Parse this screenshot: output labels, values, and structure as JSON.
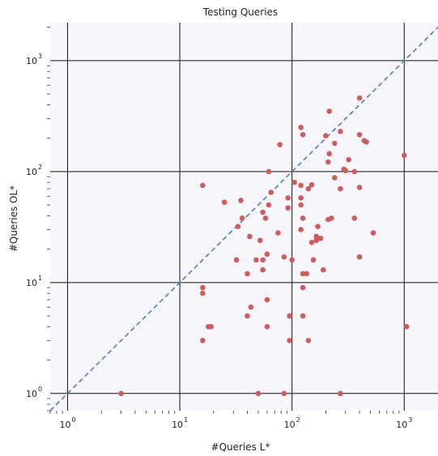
{
  "chart_data": {
    "type": "scatter",
    "title": "Testing Queries",
    "xlabel": "#Queries L*",
    "ylabel": "#Queries OL*",
    "xscale": "log",
    "yscale": "log",
    "xlim": [
      0.7,
      2000
    ],
    "ylim": [
      0.7,
      2200
    ],
    "xticks": [
      {
        "value": 1,
        "base": "10",
        "exp": "0"
      },
      {
        "value": 10,
        "base": "10",
        "exp": "1"
      },
      {
        "value": 100,
        "base": "10",
        "exp": "2"
      },
      {
        "value": 1000,
        "base": "10",
        "exp": "3"
      }
    ],
    "yticks": [
      {
        "value": 1,
        "base": "10",
        "exp": "0"
      },
      {
        "value": 10,
        "base": "10",
        "exp": "1"
      },
      {
        "value": 100,
        "base": "10",
        "exp": "2"
      },
      {
        "value": 1000,
        "base": "10",
        "exp": "3"
      }
    ],
    "grid": true,
    "reference_line": "y = x",
    "colors": {
      "background": "#f5f5fb",
      "points": "#cd5c5c",
      "grid": "#111111",
      "reference_line": "#4e7fb8"
    },
    "points": [
      [
        3,
        1
      ],
      [
        50,
        1
      ],
      [
        85,
        1
      ],
      [
        270,
        1
      ],
      [
        16,
        3
      ],
      [
        95,
        3
      ],
      [
        140,
        3
      ],
      [
        18,
        4
      ],
      [
        19,
        4
      ],
      [
        60,
        4
      ],
      [
        1050,
        4
      ],
      [
        40,
        5
      ],
      [
        95,
        5
      ],
      [
        125,
        5
      ],
      [
        43,
        6
      ],
      [
        60,
        7
      ],
      [
        16,
        8
      ],
      [
        16,
        9
      ],
      [
        125,
        9
      ],
      [
        40,
        12
      ],
      [
        55,
        13
      ],
      [
        125,
        12
      ],
      [
        135,
        12
      ],
      [
        190,
        13
      ],
      [
        32,
        16
      ],
      [
        48,
        16
      ],
      [
        55,
        16
      ],
      [
        85,
        17
      ],
      [
        100,
        16
      ],
      [
        155,
        16
      ],
      [
        400,
        17
      ],
      [
        60,
        18
      ],
      [
        52,
        24
      ],
      [
        75,
        28
      ],
      [
        120,
        30
      ],
      [
        150,
        23
      ],
      [
        165,
        24
      ],
      [
        165,
        26
      ],
      [
        180,
        25
      ],
      [
        530,
        28
      ],
      [
        33,
        32
      ],
      [
        42,
        26
      ],
      [
        58,
        38
      ],
      [
        125,
        38
      ],
      [
        170,
        32
      ],
      [
        36,
        38
      ],
      [
        210,
        37
      ],
      [
        225,
        38
      ],
      [
        360,
        38
      ],
      [
        25,
        53
      ],
      [
        35,
        55
      ],
      [
        55,
        43
      ],
      [
        62,
        50
      ],
      [
        92,
        47
      ],
      [
        120,
        50
      ],
      [
        65,
        65
      ],
      [
        92,
        58
      ],
      [
        120,
        58
      ],
      [
        140,
        70
      ],
      [
        150,
        76
      ],
      [
        270,
        70
      ],
      [
        16,
        75
      ],
      [
        105,
        80
      ],
      [
        120,
        75
      ],
      [
        240,
        88
      ],
      [
        400,
        72
      ],
      [
        62,
        100
      ],
      [
        290,
        105
      ],
      [
        300,
        102
      ],
      [
        360,
        100
      ],
      [
        320,
        128
      ],
      [
        210,
        122
      ],
      [
        215,
        145
      ],
      [
        1000,
        140
      ],
      [
        78,
        175
      ],
      [
        240,
        180
      ],
      [
        200,
        210
      ],
      [
        440,
        190
      ],
      [
        460,
        185
      ],
      [
        400,
        215
      ],
      [
        120,
        250
      ],
      [
        125,
        215
      ],
      [
        270,
        230
      ],
      [
        215,
        350
      ],
      [
        400,
        460
      ]
    ]
  }
}
